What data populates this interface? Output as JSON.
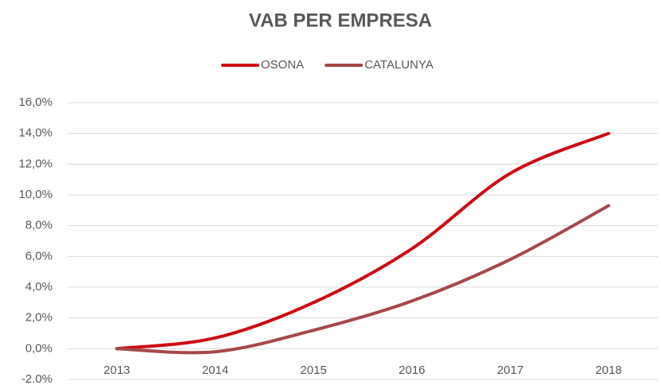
{
  "chart_data": {
    "type": "line",
    "title": "VAB PER EMPRESA",
    "categories": [
      "2013",
      "2014",
      "2015",
      "2016",
      "2017",
      "2018"
    ],
    "series": [
      {
        "name": "OSONA",
        "color": "#cc0a14",
        "values": [
          0,
          0.7,
          3.0,
          6.5,
          11.4,
          14.0
        ]
      },
      {
        "name": "CATALUNYA",
        "color": "#a5484a",
        "values": [
          0,
          -0.2,
          1.2,
          3.1,
          5.8,
          9.3
        ]
      }
    ],
    "ylim": [
      -2,
      16
    ],
    "yticks": [
      {
        "value": -2,
        "label": "-2.0%"
      },
      {
        "value": 0,
        "label": "0,0%"
      },
      {
        "value": 2,
        "label": "2,0%"
      },
      {
        "value": 4,
        "label": "4,0%"
      },
      {
        "value": 6,
        "label": "6,0%"
      },
      {
        "value": 8,
        "label": "8,0%"
      },
      {
        "value": 10,
        "label": "10,0%"
      },
      {
        "value": 12,
        "label": "12,0%"
      },
      {
        "value": 14,
        "label": "14,0%"
      },
      {
        "value": 16,
        "label": "16,0%"
      }
    ],
    "grid": true,
    "smooth": true,
    "legend": "top"
  }
}
